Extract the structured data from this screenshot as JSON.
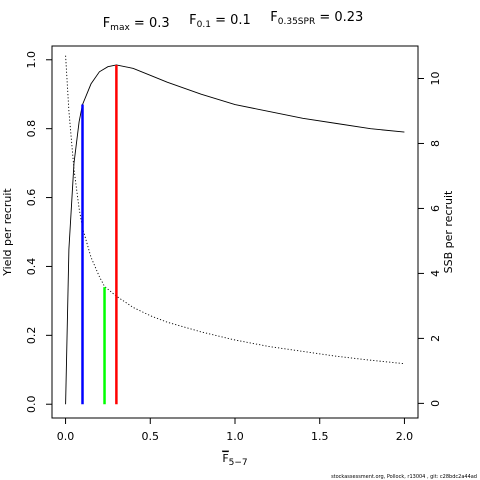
{
  "chart_data": {
    "type": "line",
    "title_parts": [
      {
        "main": "F",
        "sub": "max",
        "rest": " = 0.3"
      },
      {
        "main": "F",
        "sub": "0.1",
        "rest": " = 0.1"
      },
      {
        "main": "F",
        "sub": "0.35SPR",
        "rest": " = 0.23"
      }
    ],
    "xlabel": {
      "main": "F",
      "sub": "5−7"
    },
    "ylabel_left": "Yield per recruit",
    "ylabel_right": "SSB per recruit",
    "xlim": [
      -0.08,
      2.08
    ],
    "ylim_left": [
      -0.04,
      1.04
    ],
    "ylim_right": [
      -0.45,
      11.0
    ],
    "x_ticks": [
      0,
      0.5,
      1,
      1.5,
      2
    ],
    "x_tick_labels": [
      "0.0",
      "0.5",
      "1.0",
      "1.5",
      "2.0"
    ],
    "y_left_ticks": [
      0,
      0.2,
      0.4,
      0.6,
      0.8,
      1
    ],
    "y_left_tick_labels": [
      "0.0",
      "0.2",
      "0.4",
      "0.6",
      "0.8",
      "1.0"
    ],
    "y_right_ticks": [
      0,
      2,
      4,
      6,
      8,
      10
    ],
    "y_right_tick_labels": [
      "0",
      "2",
      "4",
      "6",
      "8",
      "10"
    ],
    "series": [
      {
        "axis": "left",
        "style": "solid",
        "x": [
          0,
          0.02,
          0.05,
          0.08,
          0.1,
          0.15,
          0.2,
          0.25,
          0.3,
          0.4,
          0.5,
          0.6,
          0.8,
          1.0,
          1.2,
          1.4,
          1.6,
          1.8,
          2.0
        ],
        "y": [
          0,
          0.45,
          0.7,
          0.82,
          0.87,
          0.93,
          0.965,
          0.98,
          0.985,
          0.975,
          0.955,
          0.935,
          0.9,
          0.87,
          0.85,
          0.83,
          0.815,
          0.8,
          0.79
        ]
      },
      {
        "axis": "right",
        "style": "dotted",
        "x": [
          0,
          0.02,
          0.05,
          0.08,
          0.1,
          0.15,
          0.2,
          0.23,
          0.3,
          0.4,
          0.5,
          0.6,
          0.8,
          1.0,
          1.2,
          1.4,
          1.6,
          1.8,
          2.0
        ],
        "y": [
          10.7,
          9.0,
          7.2,
          6.0,
          5.4,
          4.5,
          3.9,
          3.6,
          3.3,
          2.95,
          2.7,
          2.5,
          2.2,
          1.95,
          1.75,
          1.6,
          1.45,
          1.33,
          1.22
        ]
      }
    ],
    "reference_lines": [
      {
        "x": 0.1,
        "y": 0.87,
        "color": "#0000ff"
      },
      {
        "x": 0.23,
        "y": 0.34,
        "color": "#00ff00"
      },
      {
        "x": 0.3,
        "y": 0.985,
        "color": "#ff0000"
      }
    ],
    "footer": "stockassessment.org, Pollock, r13004 , git: c28bdc2a44ad"
  }
}
